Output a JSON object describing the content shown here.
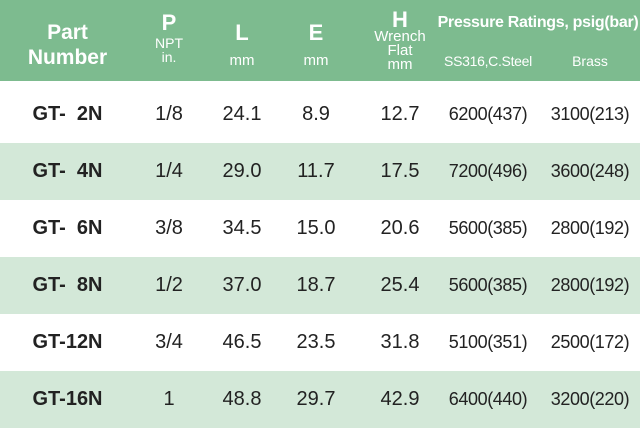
{
  "header": {
    "part": "Part\nNumber",
    "p": "P",
    "p_sub": "NPT\nin.",
    "l": "L",
    "l_unit": "mm",
    "e": "E",
    "e_unit": "mm",
    "h": "H",
    "h_sub": "Wrench\nFlat\nmm",
    "pressure_title": "Pressure Ratings, psig(bar)",
    "ss_label": "SS316,C.Steel",
    "brass_label": "Brass"
  },
  "rows": [
    {
      "part": "GT-  2N",
      "p": "1/8",
      "l": "24.1",
      "e": "8.9",
      "h": "12.7",
      "ss": "6200(437)",
      "brass": "3100(213)"
    },
    {
      "part": "GT-  4N",
      "p": "1/4",
      "l": "29.0",
      "e": "11.7",
      "h": "17.5",
      "ss": "7200(496)",
      "brass": "3600(248)"
    },
    {
      "part": "GT-  6N",
      "p": "3/8",
      "l": "34.5",
      "e": "15.0",
      "h": "20.6",
      "ss": "5600(385)",
      "brass": "2800(192)"
    },
    {
      "part": "GT-  8N",
      "p": "1/2",
      "l": "37.0",
      "e": "18.7",
      "h": "25.4",
      "ss": "5600(385)",
      "brass": "2800(192)"
    },
    {
      "part": "GT-12N",
      "p": "3/4",
      "l": "46.5",
      "e": "23.5",
      "h": "31.8",
      "ss": "5100(351)",
      "brass": "2500(172)"
    },
    {
      "part": "GT-16N",
      "p": "1",
      "l": "48.8",
      "e": "29.7",
      "h": "42.9",
      "ss": "6400(440)",
      "brass": "3200(220)"
    }
  ],
  "colors": {
    "header_bg": "#7dbb8f",
    "alt_row_bg": "#d3e8d8",
    "header_text": "#ffffff",
    "body_text": "#222222"
  }
}
